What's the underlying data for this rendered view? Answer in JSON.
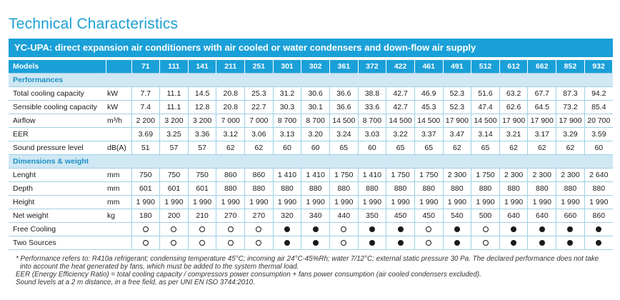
{
  "title": "Technical Characteristics",
  "banner": "YC-UPA: direct expansion air conditioners with air cooled or water condensers and down-flow air supply",
  "header": {
    "label": "Models",
    "models": [
      "71",
      "111",
      "141",
      "211",
      "251",
      "301",
      "302",
      "361",
      "372",
      "422",
      "461",
      "491",
      "512",
      "612",
      "662",
      "852",
      "932"
    ]
  },
  "sections": [
    {
      "title": "Performances",
      "rows": [
        {
          "label": "Total cooling capacity",
          "unit": "kW",
          "values": [
            "7.7",
            "11.1",
            "14.5",
            "20.8",
            "25.3",
            "31.2",
            "30.6",
            "36.6",
            "38.8",
            "42.7",
            "46.9",
            "52.3",
            "51.6",
            "63.2",
            "67.7",
            "87.3",
            "94.2"
          ]
        },
        {
          "label": "Sensible cooling capacity",
          "unit": "kW",
          "values": [
            "7.4",
            "11.1",
            "12.8",
            "20.8",
            "22.7",
            "30.3",
            "30.1",
            "36.6",
            "33.6",
            "42.7",
            "45.3",
            "52.3",
            "47.4",
            "62.6",
            "64.5",
            "73.2",
            "85.4"
          ]
        },
        {
          "label": "Airflow",
          "unit": "m³/h",
          "values": [
            "2 200",
            "3 200",
            "3 200",
            "7 000",
            "7 000",
            "8 700",
            "8 700",
            "14 500",
            "8 700",
            "14 500",
            "14 500",
            "17 900",
            "14 500",
            "17 900",
            "17 900",
            "17 900",
            "20 700"
          ]
        },
        {
          "label": "EER",
          "unit": "",
          "values": [
            "3.69",
            "3.25",
            "3.36",
            "3.12",
            "3.06",
            "3.13",
            "3.20",
            "3.24",
            "3.03",
            "3.22",
            "3.37",
            "3.47",
            "3.14",
            "3.21",
            "3.17",
            "3.29",
            "3.59"
          ]
        },
        {
          "label": "Sound pressure level",
          "unit": "dB(A)",
          "values": [
            "51",
            "57",
            "57",
            "62",
            "62",
            "60",
            "60",
            "65",
            "60",
            "65",
            "65",
            "62",
            "65",
            "62",
            "62",
            "62",
            "60"
          ]
        }
      ]
    },
    {
      "title": "Dimensions & weight",
      "rows": [
        {
          "label": "Lenght",
          "unit": "mm",
          "values": [
            "750",
            "750",
            "750",
            "860",
            "860",
            "1 410",
            "1 410",
            "1 750",
            "1 410",
            "1 750",
            "1 750",
            "2 300",
            "1 750",
            "2 300",
            "2 300",
            "2 300",
            "2 640"
          ]
        },
        {
          "label": "Depth",
          "unit": "mm",
          "values": [
            "601",
            "601",
            "601",
            "880",
            "880",
            "880",
            "880",
            "880",
            "880",
            "880",
            "880",
            "880",
            "880",
            "880",
            "880",
            "880",
            "880"
          ]
        },
        {
          "label": "Height",
          "unit": "mm",
          "values": [
            "1 990",
            "1 990",
            "1 990",
            "1 990",
            "1 990",
            "1 990",
            "1 990",
            "1 990",
            "1 990",
            "1 990",
            "1 990",
            "1 990",
            "1 990",
            "1 990",
            "1 990",
            "1 990",
            "1 990"
          ]
        },
        {
          "label": "Net weight",
          "unit": "kg",
          "values": [
            "180",
            "200",
            "210",
            "270",
            "270",
            "320",
            "340",
            "440",
            "350",
            "450",
            "450",
            "540",
            "500",
            "640",
            "640",
            "660",
            "860"
          ]
        },
        {
          "label": "Free Cooling",
          "unit": "",
          "dots": [
            "open",
            "open",
            "open",
            "open",
            "open",
            "filled",
            "filled",
            "open",
            "filled",
            "filled",
            "open",
            "filled",
            "open",
            "filled",
            "filled",
            "filled",
            "filled"
          ]
        },
        {
          "label": "Two Sources",
          "unit": "",
          "dots": [
            "open",
            "open",
            "open",
            "open",
            "open",
            "filled",
            "filled",
            "open",
            "filled",
            "filled",
            "open",
            "filled",
            "open",
            "filled",
            "filled",
            "filled",
            "filled"
          ]
        }
      ]
    }
  ],
  "notes": {
    "line1": "* Performance refers to: R410a refrigerant; condensing temperature 45°C; incoming air 24°C-45%Rh; water 7/12°C; external static pressure 30 Pa. The declared performance does not take",
    "line2": "into account the heat generated by fans, which must be added to the system thermal load.",
    "line3": "EER (Energy Efficiency Ratio) = total cooling capacity / compressors power consumption + fans power consumption (air cooled condensers excluded).",
    "line4": "Sound levels at a 2 m distance, in a free field, as per UNI EN ISO 3744:2010."
  }
}
